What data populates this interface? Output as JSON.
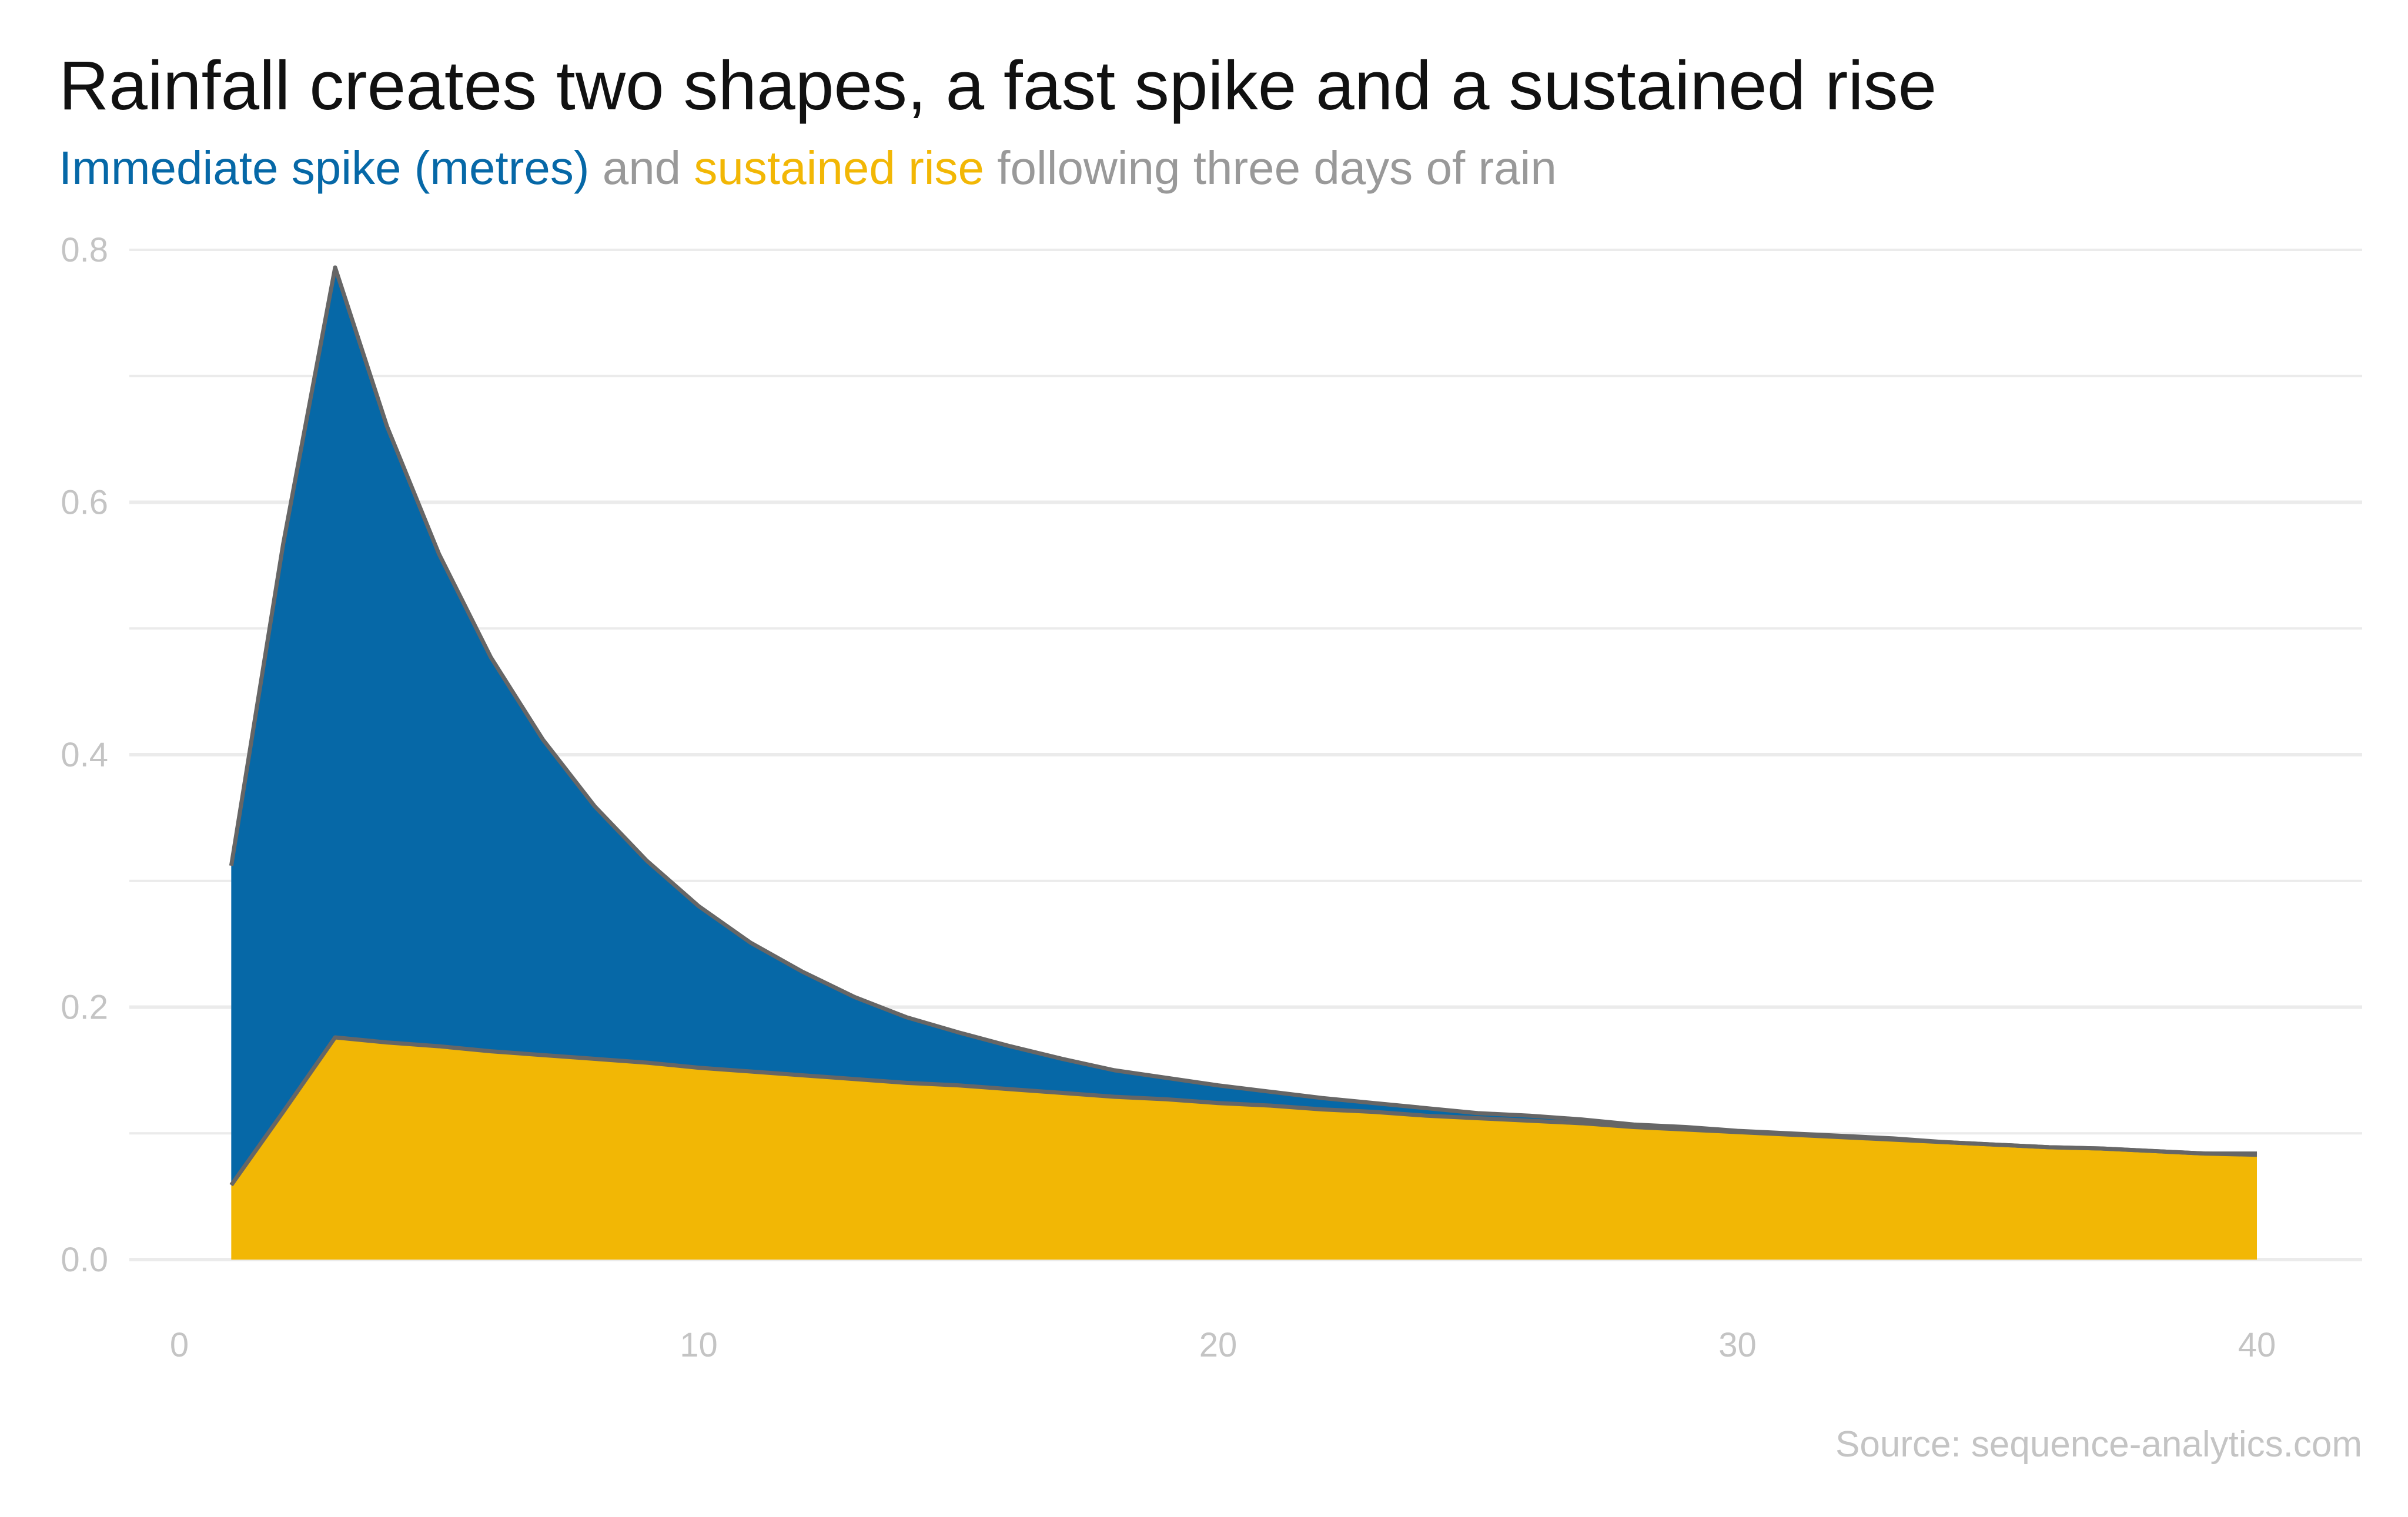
{
  "colors": {
    "spike": "#0668a7",
    "sustained": "#f2b705",
    "outline": "#666666",
    "muted": "#999999",
    "grid": "#ebebeb"
  },
  "chart_data": {
    "type": "area",
    "stacked": true,
    "title": "Rainfall creates two shapes, a fast spike and a sustained rise",
    "subtitle": {
      "spike_label": "Immediate spike (metres)",
      "and": " and ",
      "sustained_label": "sustained rise",
      "rest": " following three days of rain"
    },
    "source": "Source: sequence-analytics.com",
    "xlabel": "",
    "ylabel": "",
    "xlim": [
      0,
      40
    ],
    "ylim": [
      0,
      0.8
    ],
    "x_ticks": [
      0,
      10,
      20,
      30,
      40
    ],
    "x_tick_labels": [
      "0",
      "10",
      "20",
      "30",
      "40"
    ],
    "y_ticks": [
      0,
      0.2,
      0.4,
      0.6,
      0.8
    ],
    "y_tick_labels": [
      "0.0",
      "0.2",
      "0.4",
      "0.6",
      "0.8"
    ],
    "grid": true,
    "legend": "none (colour-coded subtitle)",
    "x": [
      1,
      2,
      3,
      4,
      5,
      6,
      7,
      8,
      9,
      10,
      11,
      12,
      13,
      14,
      15,
      16,
      17,
      18,
      19,
      20,
      21,
      22,
      23,
      24,
      25,
      26,
      27,
      28,
      29,
      30,
      31,
      32,
      33,
      34,
      35,
      36,
      37,
      38,
      39,
      40
    ],
    "series": [
      {
        "name": "sustained rise",
        "values": [
          0.059,
          0.117,
          0.176,
          0.172,
          0.169,
          0.165,
          0.162,
          0.159,
          0.156,
          0.152,
          0.149,
          0.146,
          0.143,
          0.14,
          0.138,
          0.135,
          0.132,
          0.129,
          0.127,
          0.124,
          0.122,
          0.119,
          0.117,
          0.114,
          0.112,
          0.11,
          0.108,
          0.105,
          0.103,
          0.101,
          0.099,
          0.097,
          0.095,
          0.093,
          0.091,
          0.089,
          0.088,
          0.086,
          0.084,
          0.083
        ]
      },
      {
        "name": "Immediate spike (metres)",
        "values": [
          0.253,
          0.45,
          0.61,
          0.488,
          0.39,
          0.312,
          0.25,
          0.2,
          0.16,
          0.128,
          0.102,
          0.082,
          0.065,
          0.052,
          0.042,
          0.034,
          0.027,
          0.021,
          0.017,
          0.014,
          0.011,
          0.009,
          0.007,
          0.006,
          0.004,
          0.004,
          0.003,
          0.002,
          0.002,
          0.001,
          0.001,
          0.001,
          0.001,
          0.0,
          0.0,
          0.0,
          0.0,
          0.0,
          0.0,
          0.001
        ]
      }
    ]
  }
}
